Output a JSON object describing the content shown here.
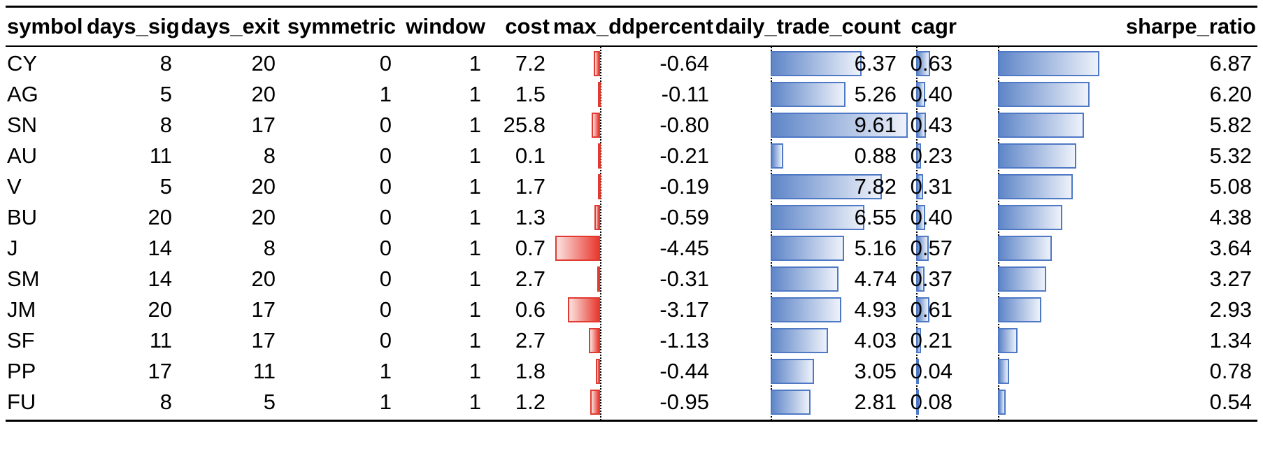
{
  "chart_data": {
    "type": "table",
    "columns": [
      "symbol",
      "days_sig",
      "days_exit",
      "symmetric",
      "window",
      "cost",
      "max_ddpercent",
      "daily_trade_count",
      "cagr",
      "sharpe_ratio"
    ],
    "rows": [
      [
        "CY",
        "8",
        "20",
        "0",
        "1",
        "7.2",
        "-0.64",
        "6.37",
        "0.63",
        "6.87"
      ],
      [
        "AG",
        "5",
        "20",
        "1",
        "1",
        "1.5",
        "-0.11",
        "5.26",
        "0.40",
        "6.20"
      ],
      [
        "SN",
        "8",
        "17",
        "0",
        "1",
        "25.8",
        "-0.80",
        "9.61",
        "0.43",
        "5.82"
      ],
      [
        "AU",
        "11",
        "8",
        "0",
        "1",
        "0.1",
        "-0.21",
        "0.88",
        "0.23",
        "5.32"
      ],
      [
        "V",
        "5",
        "20",
        "0",
        "1",
        "1.7",
        "-0.19",
        "7.82",
        "0.31",
        "5.08"
      ],
      [
        "BU",
        "20",
        "20",
        "0",
        "1",
        "1.3",
        "-0.59",
        "6.55",
        "0.40",
        "4.38"
      ],
      [
        "J",
        "14",
        "8",
        "0",
        "1",
        "0.7",
        "-4.45",
        "5.16",
        "0.57",
        "3.64"
      ],
      [
        "SM",
        "14",
        "20",
        "0",
        "1",
        "2.7",
        "-0.31",
        "4.74",
        "0.37",
        "3.27"
      ],
      [
        "JM",
        "20",
        "17",
        "0",
        "1",
        "0.6",
        "-3.17",
        "4.93",
        "0.61",
        "2.93"
      ],
      [
        "SF",
        "11",
        "17",
        "0",
        "1",
        "2.7",
        "-1.13",
        "4.03",
        "0.21",
        "1.34"
      ],
      [
        "PP",
        "17",
        "11",
        "1",
        "1",
        "1.8",
        "-0.44",
        "3.05",
        "0.04",
        "0.78"
      ],
      [
        "FU",
        "8",
        "5",
        "1",
        "1",
        "1.2",
        "-0.95",
        "2.81",
        "0.08",
        "0.54"
      ]
    ],
    "data_bars": {
      "max_ddpercent": {
        "direction": "negative",
        "color": "#e8392f",
        "min": -4.45,
        "max": 0
      },
      "daily_trade_count": {
        "direction": "positive",
        "color": "#5f86c8",
        "min": 0,
        "max": 9.61
      },
      "cagr": {
        "direction": "positive",
        "color": "#5f86c8",
        "min": 0,
        "max": 0.63
      },
      "sharpe_ratio": {
        "direction": "positive",
        "color": "#5f86c8",
        "min": 0,
        "max": 6.87
      }
    }
  }
}
